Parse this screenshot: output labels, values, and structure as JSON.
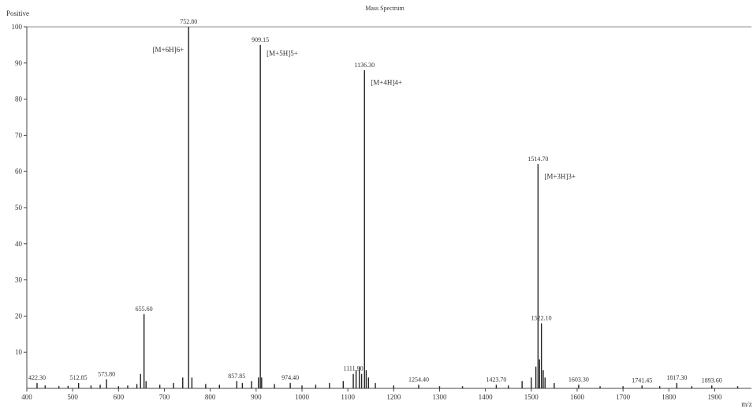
{
  "chart_data": {
    "type": "line",
    "title": "Mass Spectrum",
    "mode_label": "Positive",
    "xlabel": "m/z",
    "ylabel": "",
    "xlim": [
      400,
      1980
    ],
    "ylim": [
      0,
      100
    ],
    "x_ticks": [
      400,
      500,
      600,
      700,
      800,
      900,
      1000,
      1100,
      1200,
      1300,
      1400,
      1500,
      1600,
      1700,
      1800,
      1900
    ],
    "y_ticks": [
      10,
      20,
      30,
      40,
      50,
      60,
      70,
      80,
      90,
      100
    ],
    "grid": false,
    "legend": "none",
    "series": [
      {
        "x": [
          422.3,
          440,
          470,
          490,
          512.85,
          540,
          560,
          573.8,
          600,
          620,
          640,
          648,
          655.6,
          660,
          690,
          720,
          740,
          752.8,
          760,
          790,
          820,
          857.85,
          870,
          890,
          905,
          909.15,
          912,
          940,
          974.4,
          1000,
          1030,
          1060,
          1090,
          1111.9,
          1118,
          1125,
          1130,
          1136.3,
          1140,
          1145,
          1160,
          1200,
          1254.4,
          1300,
          1350,
          1423.7,
          1450,
          1480,
          1500,
          1510,
          1514.7,
          1518,
          1522.1,
          1526,
          1530,
          1550,
          1603.3,
          1650,
          1700,
          1741.45,
          1780,
          1817.3,
          1850,
          1893.6,
          1950
        ],
        "y": [
          1.5,
          0.8,
          0.6,
          0.7,
          1.5,
          0.8,
          1,
          2.5,
          0.6,
          0.8,
          1.2,
          4,
          20.5,
          2,
          1,
          1.5,
          3,
          100,
          3,
          1.2,
          1,
          2,
          1.5,
          2,
          3,
          95,
          3,
          1.2,
          1.5,
          0.8,
          1,
          1.5,
          2,
          4,
          5,
          6,
          4,
          88,
          5,
          3,
          1.5,
          0.8,
          1,
          0.6,
          0.6,
          1,
          0.8,
          2,
          3,
          6,
          62,
          8,
          18,
          5,
          3,
          1.5,
          1,
          0.6,
          0.6,
          0.8,
          0.6,
          1.5,
          0.6,
          0.8,
          0.6
        ]
      }
    ],
    "peak_labels": [
      {
        "x": 422.3,
        "y": 1.5,
        "text": "422.30"
      },
      {
        "x": 512.85,
        "y": 1.5,
        "text": "512.85"
      },
      {
        "x": 573.8,
        "y": 2.5,
        "text": "573.80"
      },
      {
        "x": 655.6,
        "y": 20.5,
        "text": "655.60"
      },
      {
        "x": 752.8,
        "y": 100,
        "text": "752.80"
      },
      {
        "x": 857.85,
        "y": 2,
        "text": "857.85"
      },
      {
        "x": 909.15,
        "y": 95,
        "text": "909.15"
      },
      {
        "x": 974.4,
        "y": 1.5,
        "text": "974.40"
      },
      {
        "x": 1111.9,
        "y": 4,
        "text": "1111.90"
      },
      {
        "x": 1136.3,
        "y": 88,
        "text": "1136.30"
      },
      {
        "x": 1254.4,
        "y": 1,
        "text": "1254.40"
      },
      {
        "x": 1423.7,
        "y": 1,
        "text": "1423.70"
      },
      {
        "x": 1514.7,
        "y": 62,
        "text": "1514.70"
      },
      {
        "x": 1522.1,
        "y": 18,
        "text": "1522.10"
      },
      {
        "x": 1603.3,
        "y": 1,
        "text": "1603.30"
      },
      {
        "x": 1741.45,
        "y": 0.8,
        "text": "1741.45"
      },
      {
        "x": 1817.3,
        "y": 1.5,
        "text": "1817.30"
      },
      {
        "x": 1893.6,
        "y": 0.8,
        "text": "1893.60"
      }
    ],
    "annotations": [
      {
        "x": 752.8,
        "y": 93,
        "text": "[M+6H]6+",
        "anchor": "end"
      },
      {
        "x": 909.15,
        "y": 92,
        "text": "[M+5H]5+",
        "anchor": "start"
      },
      {
        "x": 1136.3,
        "y": 84,
        "text": "[M+4H]4+",
        "anchor": "start"
      },
      {
        "x": 1514.7,
        "y": 58,
        "text": "[M+3H]3+",
        "anchor": "start"
      }
    ]
  }
}
